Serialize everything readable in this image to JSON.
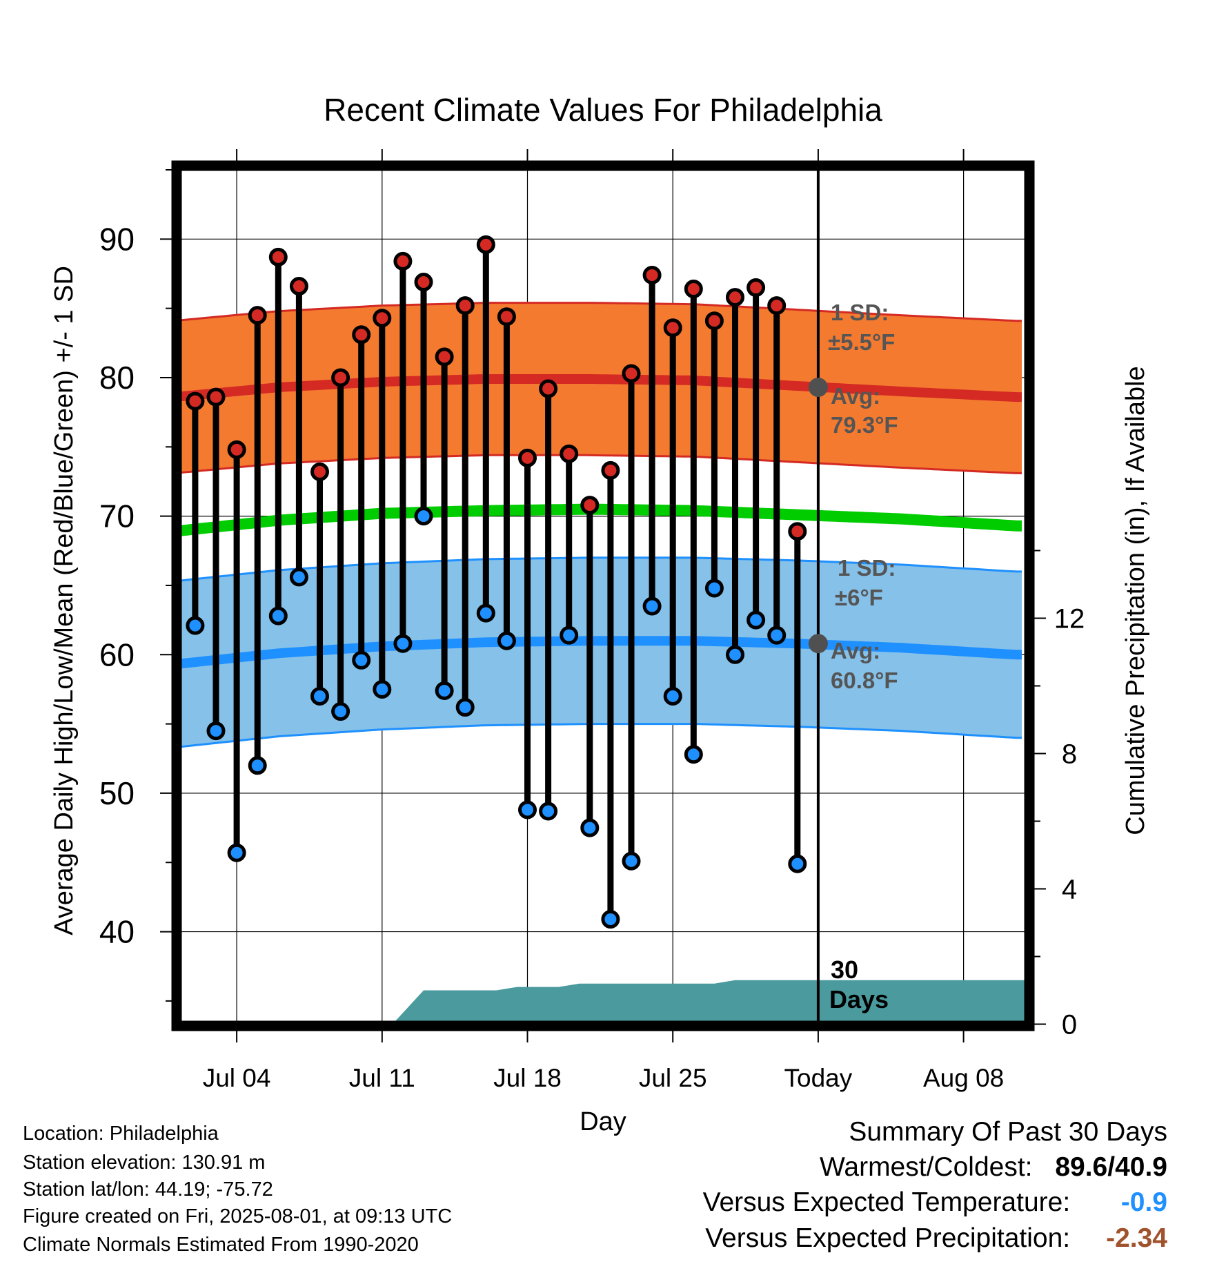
{
  "chart_data": {
    "type": "line",
    "title": "Recent Climate Values For Philadelphia",
    "xlabel": "Day",
    "ylabel": "Average Daily High/Low/Mean (Red/Blue/Green) +/- 1 SD",
    "y2label": "Cumulative Precipitation (in), If Available",
    "ylim": [
      33.5,
      95
    ],
    "y2lim": [
      0,
      20
    ],
    "x_tick_labels": [
      "Jul 04",
      "Jul 11",
      "Jul 18",
      "Jul 25",
      "Today",
      "Aug 08"
    ],
    "y_ticks": [
      40,
      50,
      60,
      70,
      80,
      90
    ],
    "y2_ticks": [
      0,
      4,
      8,
      12
    ],
    "grid": true,
    "today_label_top": "30",
    "today_label_bottom": "Days",
    "daily": [
      {
        "date": "Jul 02",
        "high": 78.3,
        "low": 62.1
      },
      {
        "date": "Jul 03",
        "high": 78.6,
        "low": 54.5
      },
      {
        "date": "Jul 04",
        "high": 74.8,
        "low": 45.7
      },
      {
        "date": "Jul 05",
        "high": 84.5,
        "low": 52.0
      },
      {
        "date": "Jul 06",
        "high": 88.7,
        "low": 62.8
      },
      {
        "date": "Jul 07",
        "high": 86.6,
        "low": 65.6
      },
      {
        "date": "Jul 08",
        "high": 73.2,
        "low": 57.0
      },
      {
        "date": "Jul 09",
        "high": 80.0,
        "low": 55.9
      },
      {
        "date": "Jul 10",
        "high": 83.1,
        "low": 59.6
      },
      {
        "date": "Jul 11",
        "high": 84.3,
        "low": 57.5
      },
      {
        "date": "Jul 12",
        "high": 88.4,
        "low": 60.8
      },
      {
        "date": "Jul 13",
        "high": 86.9,
        "low": 70.0
      },
      {
        "date": "Jul 14",
        "high": 81.5,
        "low": 57.4
      },
      {
        "date": "Jul 15",
        "high": 85.2,
        "low": 56.2
      },
      {
        "date": "Jul 16",
        "high": 89.6,
        "low": 63.0
      },
      {
        "date": "Jul 17",
        "high": 84.4,
        "low": 61.0
      },
      {
        "date": "Jul 18",
        "high": 74.2,
        "low": 48.8
      },
      {
        "date": "Jul 19",
        "high": 79.2,
        "low": 48.7
      },
      {
        "date": "Jul 20",
        "high": 74.5,
        "low": 61.4
      },
      {
        "date": "Jul 21",
        "high": 70.8,
        "low": 47.5
      },
      {
        "date": "Jul 22",
        "high": 73.3,
        "low": 40.9
      },
      {
        "date": "Jul 23",
        "high": 80.3,
        "low": 45.1
      },
      {
        "date": "Jul 24",
        "high": 87.4,
        "low": 63.5
      },
      {
        "date": "Jul 25",
        "high": 83.6,
        "low": 57.0
      },
      {
        "date": "Jul 26",
        "high": 86.4,
        "low": 52.8
      },
      {
        "date": "Jul 27",
        "high": 84.1,
        "low": 64.8
      },
      {
        "date": "Jul 28",
        "high": 85.8,
        "low": 60.0
      },
      {
        "date": "Jul 29",
        "high": 86.5,
        "low": 62.5
      },
      {
        "date": "Jul 30",
        "high": 85.2,
        "low": 61.4
      },
      {
        "date": "Jul 31",
        "high": 68.9,
        "low": 44.9
      }
    ],
    "normals": {
      "days_from_jul01": [
        0,
        5,
        10,
        15,
        20,
        25,
        30,
        35,
        40.5
      ],
      "avg_high": [
        78.6,
        79.3,
        79.7,
        79.9,
        79.9,
        79.8,
        79.4,
        79.0,
        78.6
      ],
      "avg_low": [
        59.3,
        60.1,
        60.6,
        60.9,
        61.0,
        61.0,
        60.8,
        60.5,
        60.0
      ],
      "avg_mean": [
        68.9,
        69.7,
        70.2,
        70.4,
        70.5,
        70.4,
        70.1,
        69.8,
        69.3
      ],
      "high_sd": 5.5,
      "low_sd": 6.0
    },
    "precip_cumulative": [
      {
        "day": 10.5,
        "value": 0
      },
      {
        "day": 12,
        "value": 1.0
      },
      {
        "day": 15.5,
        "value": 1.0
      },
      {
        "day": 16.5,
        "value": 1.1
      },
      {
        "day": 18.5,
        "value": 1.1
      },
      {
        "day": 19.5,
        "value": 1.2
      },
      {
        "day": 26,
        "value": 1.2
      },
      {
        "day": 27,
        "value": 1.3
      },
      {
        "day": 41,
        "value": 1.3
      }
    ],
    "annotations": {
      "high_sd_label": "1 SD:",
      "high_sd_value": "±5.5°F",
      "high_avg_label": "Avg:",
      "high_avg_value": "79.3°F",
      "high_avg_today": 79.3,
      "low_sd_label": "1 SD:",
      "low_sd_value": "±6°F",
      "low_avg_label": "Avg:",
      "low_avg_value": "60.8°F",
      "low_avg_today": 60.8
    },
    "colors": {
      "high_band": "#f47a30",
      "high_line": "#d42a23",
      "low_band": "#85c1e9",
      "low_line": "#1e90ff",
      "mean_line": "#00cc00",
      "precip": "#4a9a9e",
      "annotation": "#555555"
    }
  },
  "info": {
    "location": "Location: Philadelphia",
    "elevation": "Station elevation: 130.91 m",
    "latlon": "Station lat/lon: 44.19; -75.72",
    "created": "Figure created on Fri, 2025-08-01, at 09:13 UTC",
    "normals": "Climate Normals Estimated From 1990-2020"
  },
  "summary": {
    "title": "Summary Of Past 30 Days",
    "warm_cold_label": "Warmest/Coldest:",
    "warm_cold_value": "89.6/40.9",
    "temp_label": "Versus Expected Temperature:",
    "temp_value": "-0.9",
    "temp_color": "#1e90ff",
    "precip_label": "Versus Expected Precipitation:",
    "precip_value": "-2.34",
    "precip_color": "#a0522d"
  }
}
